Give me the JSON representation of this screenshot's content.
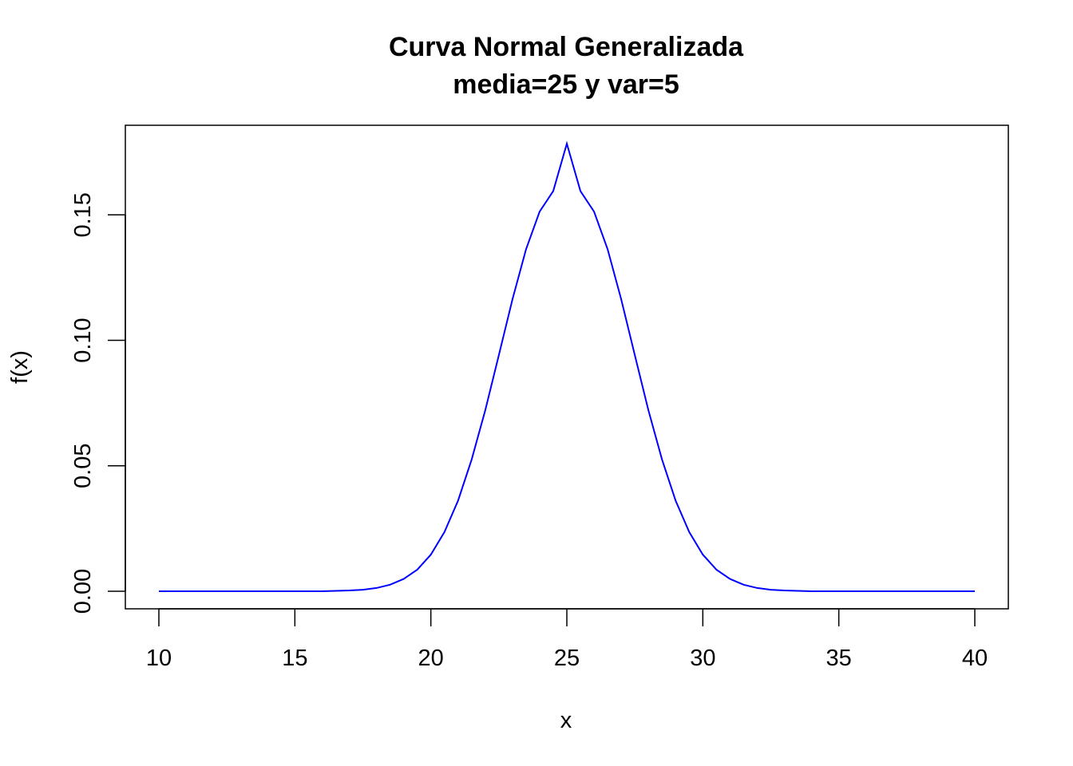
{
  "chart_data": {
    "type": "line",
    "title": "Curva Normal Generalizada",
    "subtitle": "media=25 y var=5",
    "xlabel": "x",
    "ylabel": "f(x)",
    "xlim": [
      10,
      40
    ],
    "ylim": [
      0,
      0.1784
    ],
    "x_ticks": [
      10,
      15,
      20,
      25,
      30,
      35,
      40
    ],
    "x_tick_labels": [
      "10",
      "15",
      "20",
      "25",
      "30",
      "35",
      "40"
    ],
    "y_ticks": [
      0,
      0.05,
      0.1,
      0.15
    ],
    "y_tick_labels": [
      "0.00",
      "0.05",
      "0.10",
      "0.15"
    ],
    "grid": false,
    "series": [
      {
        "color": "#0000ff",
        "x": [
          10,
          11,
          12,
          13,
          14,
          15,
          16,
          17,
          17.5,
          18,
          18.5,
          19,
          19.5,
          20,
          20.5,
          21,
          21.5,
          22,
          22.5,
          23,
          23.5,
          24,
          24.5,
          25,
          25.5,
          26,
          26.5,
          27,
          27.5,
          28,
          28.5,
          29,
          29.5,
          30,
          30.5,
          31,
          31.5,
          32,
          32.5,
          33,
          34,
          35,
          36,
          37,
          38,
          39,
          40
        ],
        "y": [
          0.0,
          0.0,
          0.0,
          0.0,
          0.0,
          0.0,
          0.0,
          0.0003,
          0.0006,
          0.0013,
          0.0026,
          0.0049,
          0.0086,
          0.0146,
          0.0236,
          0.0361,
          0.0525,
          0.0721,
          0.0941,
          0.1163,
          0.1363,
          0.1513,
          0.1595,
          0.1784,
          0.1595,
          0.1513,
          0.1363,
          0.1163,
          0.0941,
          0.0721,
          0.0525,
          0.0361,
          0.0236,
          0.0146,
          0.0086,
          0.0049,
          0.0026,
          0.0013,
          0.0006,
          0.0003,
          0.0,
          0.0,
          0.0,
          0.0,
          0.0,
          0.0,
          0.0
        ]
      }
    ]
  }
}
